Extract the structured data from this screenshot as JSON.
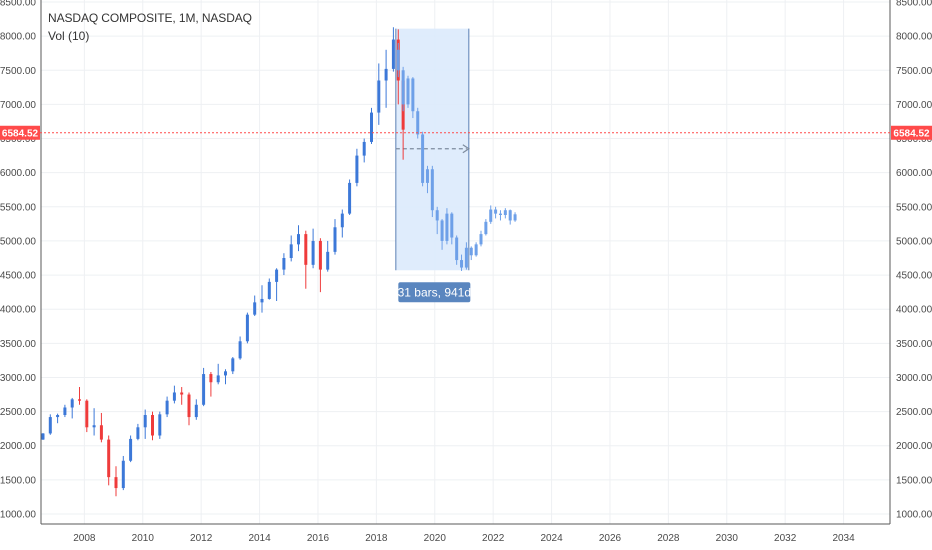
{
  "legend": {
    "symbol": "NASDAQ COMPOSITE, 1M, NASDAQ",
    "indicator": "Vol (10)"
  },
  "price_marker": {
    "value": 6584.52,
    "label": "6584.52",
    "color": "#ff4a4a"
  },
  "measure": {
    "label": "31 bars, 941d",
    "start_date": "2018-09",
    "end_date": "2021-03",
    "top_value": 8110,
    "bottom_value": 4570
  },
  "colors": {
    "up": "#3c78d8",
    "down": "#ef3b3b",
    "projection": "#6ea0e8",
    "measure_fill": "#dceafc",
    "measure_border": "#5b7fb4",
    "measure_label_bg": "#5a86bf",
    "grid": "#eef0f3"
  },
  "chart_data": {
    "type": "candlestick",
    "title": "NASDAQ COMPOSITE, 1M, NASDAQ",
    "xlabel": "",
    "ylabel": "",
    "xlim": [
      "2006-08",
      "2035-06"
    ],
    "ylim": [
      900,
      8500
    ],
    "y_ticks": [
      "8500.00",
      "8000.00",
      "7500.00",
      "7000.00",
      "6500.00",
      "6000.00",
      "5500.00",
      "5000.00",
      "4500.00",
      "4000.00",
      "3500.00",
      "3000.00",
      "2500.00",
      "2000.00",
      "1500.00",
      "1000.00"
    ],
    "x_ticks": [
      "2008",
      "2010",
      "2012",
      "2014",
      "2016",
      "2018",
      "2020",
      "2022",
      "2024",
      "2026",
      "2028",
      "2030",
      "2032",
      "2034"
    ],
    "grid": true,
    "series": [
      {
        "name": "",
        "kind": "monthly",
        "points": [
          [
            "2006-08",
            2090,
            2185,
            2085,
            2180
          ],
          [
            "2006-11",
            2180,
            2460,
            2160,
            2420
          ],
          [
            "2007-02",
            2420,
            2470,
            2330,
            2450
          ],
          [
            "2007-05",
            2450,
            2600,
            2420,
            2560
          ],
          [
            "2007-08",
            2560,
            2700,
            2400,
            2680
          ],
          [
            "2007-11",
            2680,
            2860,
            2600,
            2660
          ],
          [
            "2008-02",
            2660,
            2680,
            2200,
            2270
          ],
          [
            "2008-05",
            2270,
            2550,
            2150,
            2300
          ],
          [
            "2008-08",
            2300,
            2480,
            2050,
            2090
          ],
          [
            "2008-11",
            2090,
            2150,
            1420,
            1540
          ],
          [
            "2009-02",
            1540,
            1700,
            1260,
            1380
          ],
          [
            "2009-05",
            1380,
            1850,
            1350,
            1780
          ],
          [
            "2009-08",
            1780,
            2150,
            1760,
            2100
          ],
          [
            "2009-11",
            2100,
            2320,
            2080,
            2270
          ],
          [
            "2010-02",
            2270,
            2530,
            2100,
            2450
          ],
          [
            "2010-05",
            2450,
            2500,
            2080,
            2150
          ],
          [
            "2010-08",
            2150,
            2500,
            2100,
            2460
          ],
          [
            "2010-11",
            2460,
            2720,
            2420,
            2660
          ],
          [
            "2011-02",
            2660,
            2880,
            2620,
            2780
          ],
          [
            "2011-05",
            2780,
            2860,
            2600,
            2750
          ],
          [
            "2011-08",
            2750,
            2780,
            2300,
            2420
          ],
          [
            "2011-11",
            2420,
            2680,
            2380,
            2600
          ],
          [
            "2012-02",
            2600,
            3140,
            2580,
            3050
          ],
          [
            "2012-05",
            3050,
            3080,
            2720,
            2930
          ],
          [
            "2012-08",
            2930,
            3200,
            2900,
            3030
          ],
          [
            "2012-11",
            3030,
            3120,
            2900,
            3090
          ],
          [
            "2013-02",
            3090,
            3300,
            3050,
            3280
          ],
          [
            "2013-05",
            3280,
            3600,
            3260,
            3530
          ],
          [
            "2013-08",
            3530,
            3950,
            3500,
            3920
          ],
          [
            "2013-11",
            3920,
            4200,
            3900,
            4100
          ],
          [
            "2014-02",
            4100,
            4350,
            3950,
            4150
          ],
          [
            "2014-05",
            4150,
            4450,
            4140,
            4400
          ],
          [
            "2014-08",
            4400,
            4600,
            4120,
            4580
          ],
          [
            "2014-11",
            4580,
            4820,
            4500,
            4750
          ],
          [
            "2015-02",
            4750,
            5080,
            4700,
            4950
          ],
          [
            "2015-05",
            4950,
            5230,
            4850,
            5100
          ],
          [
            "2015-08",
            5100,
            5150,
            4300,
            4650
          ],
          [
            "2015-11",
            4650,
            5180,
            4600,
            5000
          ],
          [
            "2016-02",
            5000,
            5040,
            4250,
            4580
          ],
          [
            "2016-05",
            4580,
            5000,
            4550,
            4840
          ],
          [
            "2016-08",
            4840,
            5320,
            4800,
            5200
          ],
          [
            "2016-11",
            5200,
            5460,
            5050,
            5400
          ],
          [
            "2017-02",
            5400,
            5900,
            5380,
            5850
          ],
          [
            "2017-05",
            5850,
            6350,
            5800,
            6250
          ],
          [
            "2017-08",
            6250,
            6500,
            6150,
            6450
          ],
          [
            "2017-11",
            6450,
            6950,
            6420,
            6880
          ],
          [
            "2018-02",
            6880,
            7600,
            6700,
            7350
          ],
          [
            "2018-05",
            7350,
            7800,
            6950,
            7520
          ],
          [
            "2018-08",
            7520,
            8130,
            7480,
            7950
          ],
          [
            "2018-10",
            7950,
            8100,
            7000,
            7350
          ],
          [
            "2018-12",
            7350,
            7400,
            6190,
            6630
          ]
        ]
      },
      {
        "name": "",
        "kind": "projection",
        "points": [
          [
            "2018-10",
            7800,
            7900,
            7400,
            7500
          ],
          [
            "2018-12",
            7500,
            7550,
            6900,
            7000
          ],
          [
            "2019-02",
            7000,
            7420,
            6950,
            7380
          ],
          [
            "2019-04",
            7380,
            7400,
            6800,
            6900
          ],
          [
            "2019-06",
            6900,
            6950,
            6500,
            6560
          ],
          [
            "2019-08",
            6560,
            6600,
            5800,
            5850
          ],
          [
            "2019-10",
            5850,
            6100,
            5700,
            6050
          ],
          [
            "2019-12",
            6050,
            6100,
            5350,
            5450
          ],
          [
            "2020-02",
            5450,
            5500,
            5100,
            5300
          ],
          [
            "2020-04",
            5300,
            5320,
            4870,
            5000
          ],
          [
            "2020-06",
            5000,
            5480,
            4950,
            5400
          ],
          [
            "2020-08",
            5400,
            5420,
            4950,
            5050
          ],
          [
            "2020-10",
            5050,
            5080,
            4650,
            4720
          ],
          [
            "2020-12",
            4720,
            4800,
            4560,
            4610
          ],
          [
            "2021-02",
            4610,
            4980,
            4580,
            4900
          ],
          [
            "2021-04",
            4900,
            4920,
            4720,
            4790
          ],
          [
            "2021-06",
            4790,
            4980,
            4770,
            4950
          ],
          [
            "2021-08",
            4950,
            5150,
            4920,
            5100
          ],
          [
            "2021-10",
            5100,
            5320,
            5080,
            5280
          ],
          [
            "2021-12",
            5280,
            5520,
            5250,
            5460
          ],
          [
            "2022-02",
            5460,
            5500,
            5330,
            5400
          ],
          [
            "2022-04",
            5400,
            5450,
            5300,
            5380
          ],
          [
            "2022-06",
            5380,
            5480,
            5330,
            5450
          ],
          [
            "2022-08",
            5450,
            5460,
            5240,
            5300
          ],
          [
            "2022-10",
            5300,
            5420,
            5280,
            5390
          ]
        ]
      }
    ]
  }
}
